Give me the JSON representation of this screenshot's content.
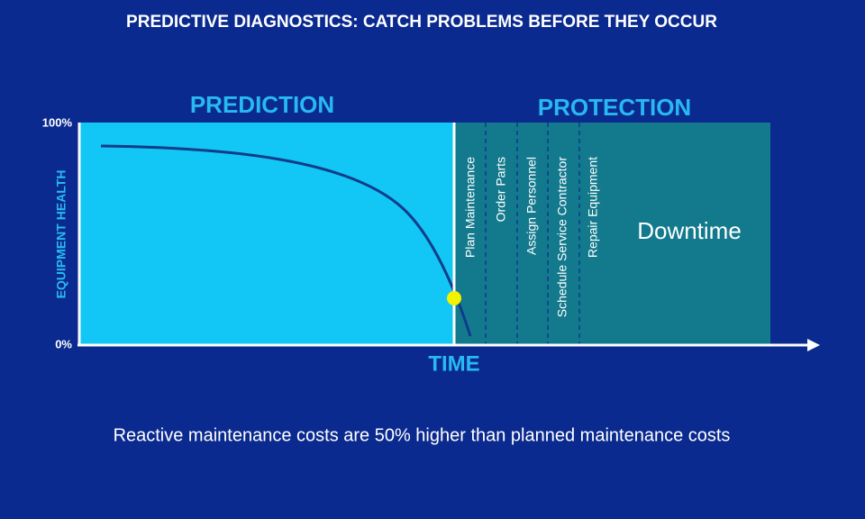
{
  "header": {
    "title": "PREDICTIVE DIAGNOSTICS: CATCH PROBLEMS BEFORE THEY OCCUR"
  },
  "regions": [
    {
      "label": "PREDICTION"
    },
    {
      "label": "PROTECTION"
    }
  ],
  "y_axis": {
    "label": "EQUIPMENT HEALTH",
    "ticks": [
      "100%",
      "0%"
    ]
  },
  "x_axis": {
    "label": "TIME"
  },
  "steps": [
    "Plan Maintenance",
    "Order Parts",
    "Assign Personnel",
    "Schedule Service Contractor",
    "Repair Equipment"
  ],
  "downtime": "Downtime",
  "footnote": "Reactive maintenance costs are 50% higher than planned maintenance costs"
}
